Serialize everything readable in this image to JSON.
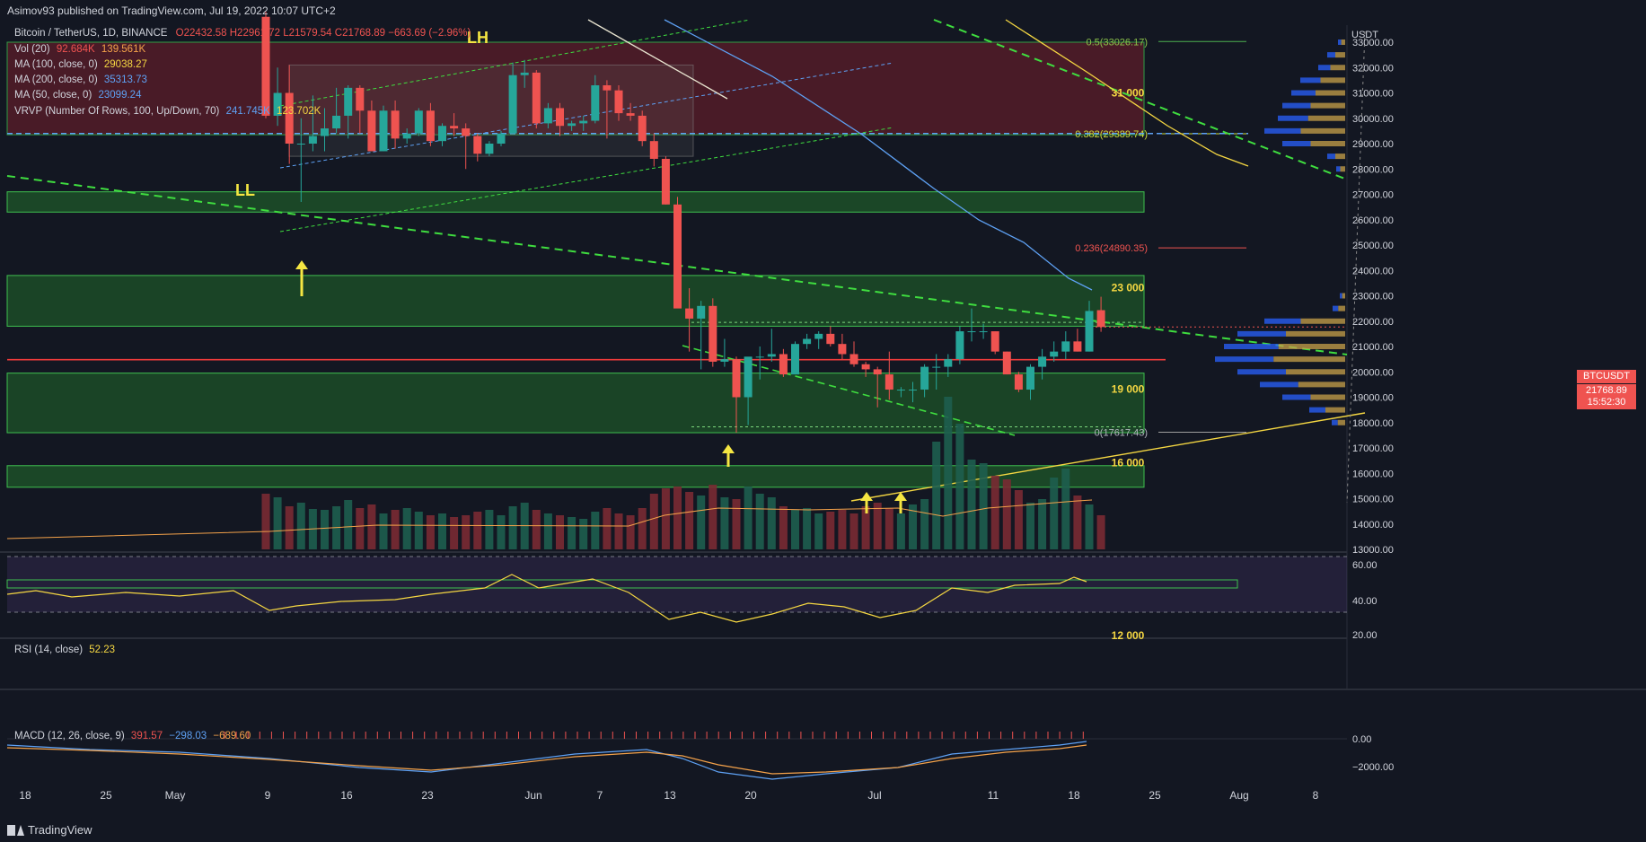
{
  "header": {
    "publisher": "Asimov93 published on TradingView.com, Jul 19, 2022 10:07 UTC+2"
  },
  "legend": {
    "symbol": "Bitcoin / TetherUS, 1D, BINANCE",
    "ohlc": "O22432.58 H22961.72 L21579.54 C21768.89 −663.69 (−2.96%)",
    "vol_label": "Vol (20)",
    "vol_v1": "92.684K",
    "vol_v2": "139.561K",
    "ma100_label": "MA (100, close, 0)",
    "ma100_v": "29038.27",
    "ma200_label": "MA (200, close, 0)",
    "ma200_v": "35313.73",
    "ma50_label": "MA (50, close, 0)",
    "ma50_v": "23099.24",
    "vrvp_label": "VRVP (Number Of Rows, 100, Up/Down, 70)",
    "vrvp_v1": "241.745K",
    "vrvp_v2": "123.702K",
    "rsi_label": "RSI (14, close)",
    "rsi_v": "52.23",
    "macd_label": "MACD (12, 26, close, 9)",
    "macd_v1": "391.57",
    "macd_v2": "−298.03",
    "macd_v3": "−689.60"
  },
  "price_axis": {
    "currency": "USDT",
    "ticks": [
      "33000.00",
      "32000.00",
      "31000.00",
      "30000.00",
      "29000.00",
      "28000.00",
      "27000.00",
      "26000.00",
      "25000.00",
      "24000.00",
      "23000.00",
      "22000.00",
      "21000.00",
      "20000.00",
      "19000.00",
      "18000.00",
      "17000.00",
      "16000.00",
      "15000.00",
      "14000.00",
      "13000.00"
    ],
    "current_symbol": "BTCUSDT",
    "current_price": "21768.89",
    "countdown": "15:52:30"
  },
  "rsi_axis": {
    "ticks": [
      "60.00",
      "40.00",
      "20.00"
    ]
  },
  "macd_axis": {
    "ticks": [
      "0.00",
      "−2000.00"
    ]
  },
  "time_axis": {
    "labels": [
      "18",
      "25",
      "May",
      "9",
      "16",
      "23",
      "Jun",
      "7",
      "13",
      "20",
      "Jul",
      "11",
      "18",
      "25",
      "Aug",
      "8"
    ]
  },
  "annotations": {
    "lh": "LH",
    "ll": "LL",
    "lvl_31000": "31 000",
    "lvl_23000": "23 000",
    "lvl_19000": "19 000",
    "lvl_16000": "16 000",
    "lvl_12000": "12 000",
    "fib_05": "0.5(33026.17)",
    "fib_0382": "0.382(29389.74)",
    "fib_0236": "0.236(24890.35)",
    "fib_0": "0(17617.43)"
  },
  "footer": {
    "brand": "TradingView"
  },
  "colors": {
    "up": "#26a69a",
    "down": "#ef5350",
    "bg": "#131722",
    "green_zone": "#1f5c2a",
    "red_zone": "#5c1e2a"
  },
  "chart_data": {
    "type": "candlestick",
    "symbol": "BTCUSDT",
    "interval": "1D",
    "ylim": [
      12500,
      33500
    ],
    "candles": [
      {
        "d": "2022-05-09",
        "o": 34000,
        "h": 34200,
        "l": 30000,
        "c": 30100
      },
      {
        "d": "2022-05-10",
        "o": 30100,
        "h": 32000,
        "l": 29700,
        "c": 31000
      },
      {
        "d": "2022-05-11",
        "o": 31000,
        "h": 32100,
        "l": 28200,
        "c": 29000
      },
      {
        "d": "2022-05-12",
        "o": 29000,
        "h": 30000,
        "l": 26700,
        "c": 29000
      },
      {
        "d": "2022-05-13",
        "o": 29000,
        "h": 30900,
        "l": 28700,
        "c": 29300
      },
      {
        "d": "2022-05-14",
        "o": 29300,
        "h": 30400,
        "l": 28700,
        "c": 29600
      },
      {
        "d": "2022-05-15",
        "o": 29600,
        "h": 31200,
        "l": 29400,
        "c": 30100
      },
      {
        "d": "2022-05-16",
        "o": 30100,
        "h": 31300,
        "l": 29200,
        "c": 31200
      },
      {
        "d": "2022-05-17",
        "o": 31200,
        "h": 31300,
        "l": 29400,
        "c": 30300
      },
      {
        "d": "2022-05-18",
        "o": 30300,
        "h": 30700,
        "l": 28700,
        "c": 28700
      },
      {
        "d": "2022-05-19",
        "o": 28700,
        "h": 30500,
        "l": 28700,
        "c": 30300
      },
      {
        "d": "2022-05-20",
        "o": 30300,
        "h": 30700,
        "l": 28800,
        "c": 29200
      },
      {
        "d": "2022-05-21",
        "o": 29200,
        "h": 29600,
        "l": 29000,
        "c": 29400
      },
      {
        "d": "2022-05-22",
        "o": 29400,
        "h": 30400,
        "l": 29300,
        "c": 30300
      },
      {
        "d": "2022-05-23",
        "o": 30300,
        "h": 30600,
        "l": 28900,
        "c": 29100
      },
      {
        "d": "2022-05-24",
        "o": 29100,
        "h": 29800,
        "l": 28900,
        "c": 29700
      },
      {
        "d": "2022-05-25",
        "o": 29700,
        "h": 30200,
        "l": 29300,
        "c": 29600
      },
      {
        "d": "2022-05-26",
        "o": 29600,
        "h": 29800,
        "l": 28000,
        "c": 29300
      },
      {
        "d": "2022-05-27",
        "o": 29300,
        "h": 29400,
        "l": 28300,
        "c": 28600
      },
      {
        "d": "2022-05-28",
        "o": 28600,
        "h": 29100,
        "l": 28500,
        "c": 29000
      },
      {
        "d": "2022-05-29",
        "o": 29000,
        "h": 29500,
        "l": 28900,
        "c": 29400
      },
      {
        "d": "2022-05-30",
        "o": 29400,
        "h": 32200,
        "l": 29400,
        "c": 31700
      },
      {
        "d": "2022-05-31",
        "o": 31700,
        "h": 32300,
        "l": 31200,
        "c": 31800
      },
      {
        "d": "2022-06-01",
        "o": 31800,
        "h": 31900,
        "l": 29600,
        "c": 29800
      },
      {
        "d": "2022-06-02",
        "o": 29800,
        "h": 30600,
        "l": 29600,
        "c": 30400
      },
      {
        "d": "2022-06-03",
        "o": 30400,
        "h": 30600,
        "l": 29300,
        "c": 29700
      },
      {
        "d": "2022-06-04",
        "o": 29700,
        "h": 29900,
        "l": 29500,
        "c": 29800
      },
      {
        "d": "2022-06-05",
        "o": 29800,
        "h": 30100,
        "l": 29500,
        "c": 29900
      },
      {
        "d": "2022-06-06",
        "o": 29900,
        "h": 31700,
        "l": 29800,
        "c": 31300
      },
      {
        "d": "2022-06-07",
        "o": 31300,
        "h": 31500,
        "l": 29200,
        "c": 31100
      },
      {
        "d": "2022-06-08",
        "o": 31100,
        "h": 31300,
        "l": 29900,
        "c": 30200
      },
      {
        "d": "2022-06-09",
        "o": 30200,
        "h": 30600,
        "l": 29900,
        "c": 30100
      },
      {
        "d": "2022-06-10",
        "o": 30100,
        "h": 30300,
        "l": 28900,
        "c": 29100
      },
      {
        "d": "2022-06-11",
        "o": 29100,
        "h": 29400,
        "l": 28100,
        "c": 28400
      },
      {
        "d": "2022-06-12",
        "o": 28400,
        "h": 28500,
        "l": 26600,
        "c": 26600
      },
      {
        "d": "2022-06-13",
        "o": 26600,
        "h": 26900,
        "l": 22600,
        "c": 22500
      },
      {
        "d": "2022-06-14",
        "o": 22500,
        "h": 23300,
        "l": 20800,
        "c": 22100
      },
      {
        "d": "2022-06-15",
        "o": 22100,
        "h": 22800,
        "l": 20100,
        "c": 22600
      },
      {
        "d": "2022-06-16",
        "o": 22600,
        "h": 22900,
        "l": 20200,
        "c": 20400
      },
      {
        "d": "2022-06-17",
        "o": 20400,
        "h": 21300,
        "l": 20200,
        "c": 20500
      },
      {
        "d": "2022-06-18",
        "o": 20500,
        "h": 20600,
        "l": 17600,
        "c": 19000
      },
      {
        "d": "2022-06-19",
        "o": 19000,
        "h": 20500,
        "l": 17900,
        "c": 20600
      },
      {
        "d": "2022-06-20",
        "o": 20600,
        "h": 21000,
        "l": 19700,
        "c": 20600
      },
      {
        "d": "2022-06-21",
        "o": 20600,
        "h": 21700,
        "l": 20400,
        "c": 20700
      },
      {
        "d": "2022-06-22",
        "o": 20700,
        "h": 20900,
        "l": 19800,
        "c": 19900
      },
      {
        "d": "2022-06-23",
        "o": 19900,
        "h": 21200,
        "l": 19900,
        "c": 21100
      },
      {
        "d": "2022-06-24",
        "o": 21100,
        "h": 21500,
        "l": 20900,
        "c": 21300
      },
      {
        "d": "2022-06-25",
        "o": 21300,
        "h": 21600,
        "l": 20900,
        "c": 21500
      },
      {
        "d": "2022-06-26",
        "o": 21500,
        "h": 21800,
        "l": 21000,
        "c": 21100
      },
      {
        "d": "2022-06-27",
        "o": 21100,
        "h": 21500,
        "l": 20500,
        "c": 20700
      },
      {
        "d": "2022-06-28",
        "o": 20700,
        "h": 21200,
        "l": 20200,
        "c": 20300
      },
      {
        "d": "2022-06-29",
        "o": 20300,
        "h": 20400,
        "l": 19800,
        "c": 20100
      },
      {
        "d": "2022-06-30",
        "o": 20100,
        "h": 20200,
        "l": 18600,
        "c": 19900
      },
      {
        "d": "2022-07-01",
        "o": 19900,
        "h": 20800,
        "l": 18900,
        "c": 19300
      },
      {
        "d": "2022-07-02",
        "o": 19300,
        "h": 19400,
        "l": 19000,
        "c": 19300
      },
      {
        "d": "2022-07-03",
        "o": 19300,
        "h": 19600,
        "l": 18800,
        "c": 19300
      },
      {
        "d": "2022-07-04",
        "o": 19300,
        "h": 20300,
        "l": 19000,
        "c": 20200
      },
      {
        "d": "2022-07-05",
        "o": 20200,
        "h": 20700,
        "l": 19300,
        "c": 20200
      },
      {
        "d": "2022-07-06",
        "o": 20200,
        "h": 20700,
        "l": 19800,
        "c": 20500
      },
      {
        "d": "2022-07-07",
        "o": 20500,
        "h": 21800,
        "l": 20300,
        "c": 21600
      },
      {
        "d": "2022-07-08",
        "o": 21600,
        "h": 22500,
        "l": 21200,
        "c": 21600
      },
      {
        "d": "2022-07-09",
        "o": 21600,
        "h": 21900,
        "l": 21300,
        "c": 21600
      },
      {
        "d": "2022-07-10",
        "o": 21600,
        "h": 21600,
        "l": 20700,
        "c": 20800
      },
      {
        "d": "2022-07-11",
        "o": 20800,
        "h": 20800,
        "l": 19900,
        "c": 19900
      },
      {
        "d": "2022-07-12",
        "o": 19900,
        "h": 20000,
        "l": 19200,
        "c": 19300
      },
      {
        "d": "2022-07-13",
        "o": 19300,
        "h": 20300,
        "l": 18900,
        "c": 20200
      },
      {
        "d": "2022-07-14",
        "o": 20200,
        "h": 20900,
        "l": 19700,
        "c": 20600
      },
      {
        "d": "2022-07-15",
        "o": 20600,
        "h": 21200,
        "l": 20400,
        "c": 20800
      },
      {
        "d": "2022-07-16",
        "o": 20800,
        "h": 21600,
        "l": 20500,
        "c": 21200
      },
      {
        "d": "2022-07-17",
        "o": 21200,
        "h": 21700,
        "l": 20800,
        "c": 20800
      },
      {
        "d": "2022-07-18",
        "o": 20800,
        "h": 22800,
        "l": 20800,
        "c": 22400
      },
      {
        "d": "2022-07-19",
        "o": 22432.58,
        "h": 22961.72,
        "l": 21579.54,
        "c": 21768.89
      }
    ],
    "horizontal_levels": [
      31000,
      23000,
      19000,
      16000,
      12000,
      20480
    ],
    "fib_levels": [
      {
        "ratio": "0.5",
        "price": 33026.17
      },
      {
        "ratio": "0.382",
        "price": 29389.74
      },
      {
        "ratio": "0.236",
        "price": 24890.35
      },
      {
        "ratio": "0",
        "price": 17617.43
      }
    ],
    "rsi": {
      "last": 52.23,
      "levels": [
        70,
        30
      ]
    },
    "macd": {
      "macd": 391.57,
      "signal": -298.03,
      "hist": -689.6
    }
  }
}
